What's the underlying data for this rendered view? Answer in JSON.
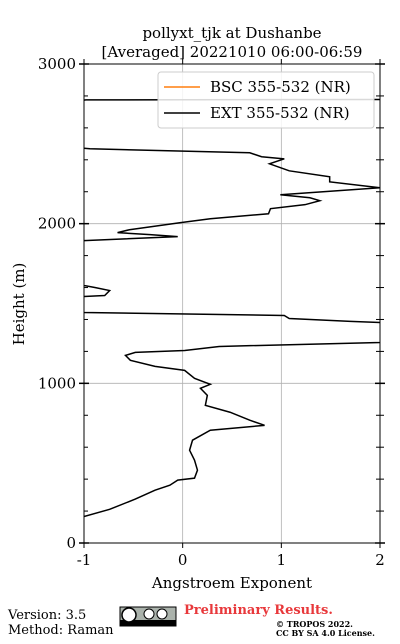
{
  "chart_data": {
    "type": "line",
    "title": "pollyxt_tjk at Dushanbe",
    "subtitle": "[Averaged] 20221010 06:00-06:59",
    "x_label": "Angstroem Exponent",
    "y_label": "Height (m)",
    "y": [
      166,
      211,
      275,
      331,
      362,
      394,
      406,
      456,
      519,
      581,
      644,
      706,
      737,
      769,
      819,
      862,
      925,
      969,
      994,
      1031,
      1081,
      1106,
      1144,
      1175,
      1194,
      1206,
      1231,
      1256,
      1268,
      1381,
      1388,
      1406,
      1425,
      1444,
      1450,
      1538,
      1544,
      1550,
      1581,
      1600,
      1613,
      1620,
      1888,
      1894,
      1919,
      1931,
      1944,
      1962,
      2006,
      2031,
      2062,
      2094,
      2119,
      2144,
      2162,
      2181,
      2225,
      2262,
      2294,
      2331,
      2375,
      2406,
      2419,
      2444,
      2469,
      2475,
      2770,
      2775,
      2778
    ],
    "series": [
      {
        "name": "BSC 355-532 (NR)",
        "color": "#ff7f0e",
        "values": [
          null,
          null,
          null,
          null,
          null,
          null,
          null,
          null,
          null,
          null,
          null,
          null,
          null,
          null,
          null,
          null,
          null,
          null,
          null,
          null,
          null,
          null,
          null,
          null,
          null,
          null,
          null,
          null,
          null,
          null,
          null,
          null,
          null,
          null,
          null,
          null,
          null,
          null,
          null,
          null,
          null,
          null,
          null,
          null,
          null,
          null,
          null,
          null,
          null,
          null,
          null,
          null,
          null,
          null,
          null,
          null,
          null,
          null,
          null,
          null,
          null,
          null,
          null,
          null,
          null,
          null,
          null,
          null,
          null
        ]
      },
      {
        "name": "EXT 355-532 (NR)",
        "color": "#000000",
        "values": [
          -1.0,
          -0.74,
          -0.48,
          -0.28,
          -0.13,
          -0.05,
          0.12,
          0.15,
          0.12,
          0.07,
          0.1,
          0.28,
          0.83,
          0.68,
          0.48,
          0.23,
          0.25,
          0.18,
          0.28,
          0.12,
          0.02,
          -0.28,
          -0.53,
          -0.58,
          -0.48,
          0.02,
          0.37,
          2.0,
          2.05,
          2.0,
          1.7,
          1.08,
          1.03,
          -1.0,
          -1.05,
          -1.05,
          -1.0,
          -0.79,
          -0.74,
          -0.89,
          -1.0,
          -1.05,
          -1.05,
          -1.0,
          -0.05,
          -0.33,
          -0.66,
          -0.54,
          -0.03,
          0.28,
          0.87,
          0.89,
          1.24,
          1.39,
          1.29,
          0.99,
          2.0,
          1.49,
          1.49,
          1.08,
          0.88,
          1.03,
          0.8,
          0.68,
          -0.94,
          -1.05,
          -1.05,
          -0.98,
          2.05
        ]
      }
    ],
    "xlim": [
      -1,
      2
    ],
    "xticks": [
      -1,
      0,
      1,
      2
    ],
    "ylim": [
      0,
      3000
    ],
    "yticks": [
      0,
      1000,
      2000,
      3000
    ],
    "yminorticks": [
      200,
      400,
      600,
      800,
      1200,
      1400,
      1600,
      1800,
      2200,
      2400,
      2600,
      2800
    ],
    "grid": true,
    "legend": "upper right"
  },
  "footer": {
    "version": "Version: 3.5",
    "method": "Method: Raman",
    "notice": "Preliminary Results.",
    "copyright": "© TROPOS 2022.",
    "license": "CC BY SA 4.0 License."
  }
}
